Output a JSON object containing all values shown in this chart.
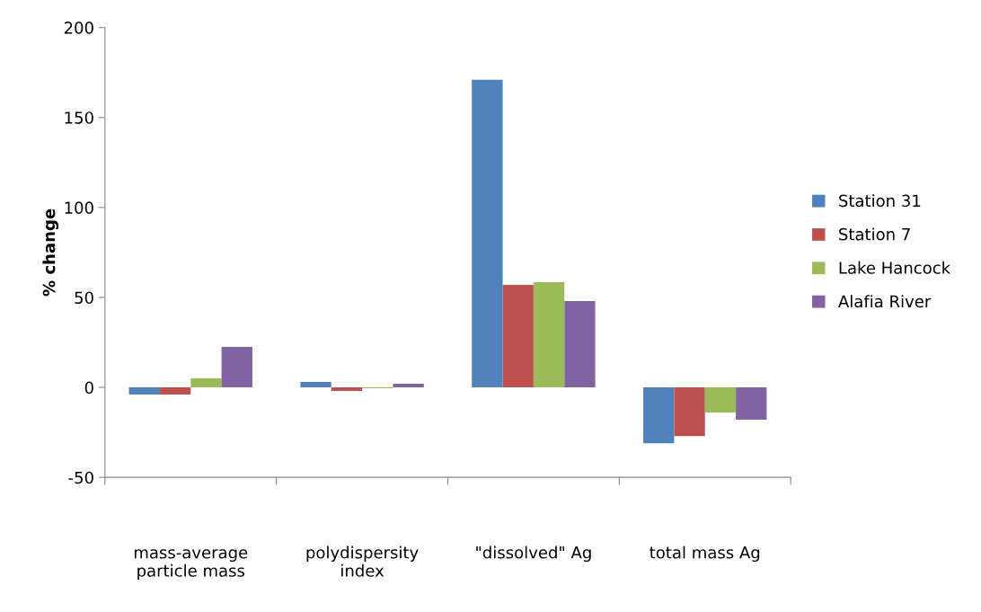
{
  "chart_data": {
    "type": "bar",
    "ylabel": "% change",
    "categories": [
      "mass-average\nparticle mass",
      "polydispersity\nindex",
      "\"dissolved\" Ag",
      "total mass Ag"
    ],
    "series": [
      {
        "name": "Station 31",
        "color": "#4f81bd",
        "values": [
          -4,
          3,
          171,
          -31
        ]
      },
      {
        "name": "Station 7",
        "color": "#c0504d",
        "values": [
          -4,
          -2,
          57,
          -27
        ]
      },
      {
        "name": "Lake Hancock",
        "color": "#9bbb59",
        "values": [
          5,
          -0.5,
          58.5,
          -14
        ]
      },
      {
        "name": "Alafia River",
        "color": "#8064a2",
        "values": [
          22.5,
          2,
          48,
          -18
        ]
      }
    ],
    "ylim": [
      -50,
      200
    ],
    "yticks": [
      -50,
      0,
      50,
      100,
      150,
      200
    ],
    "grid": false,
    "legend": "right"
  }
}
